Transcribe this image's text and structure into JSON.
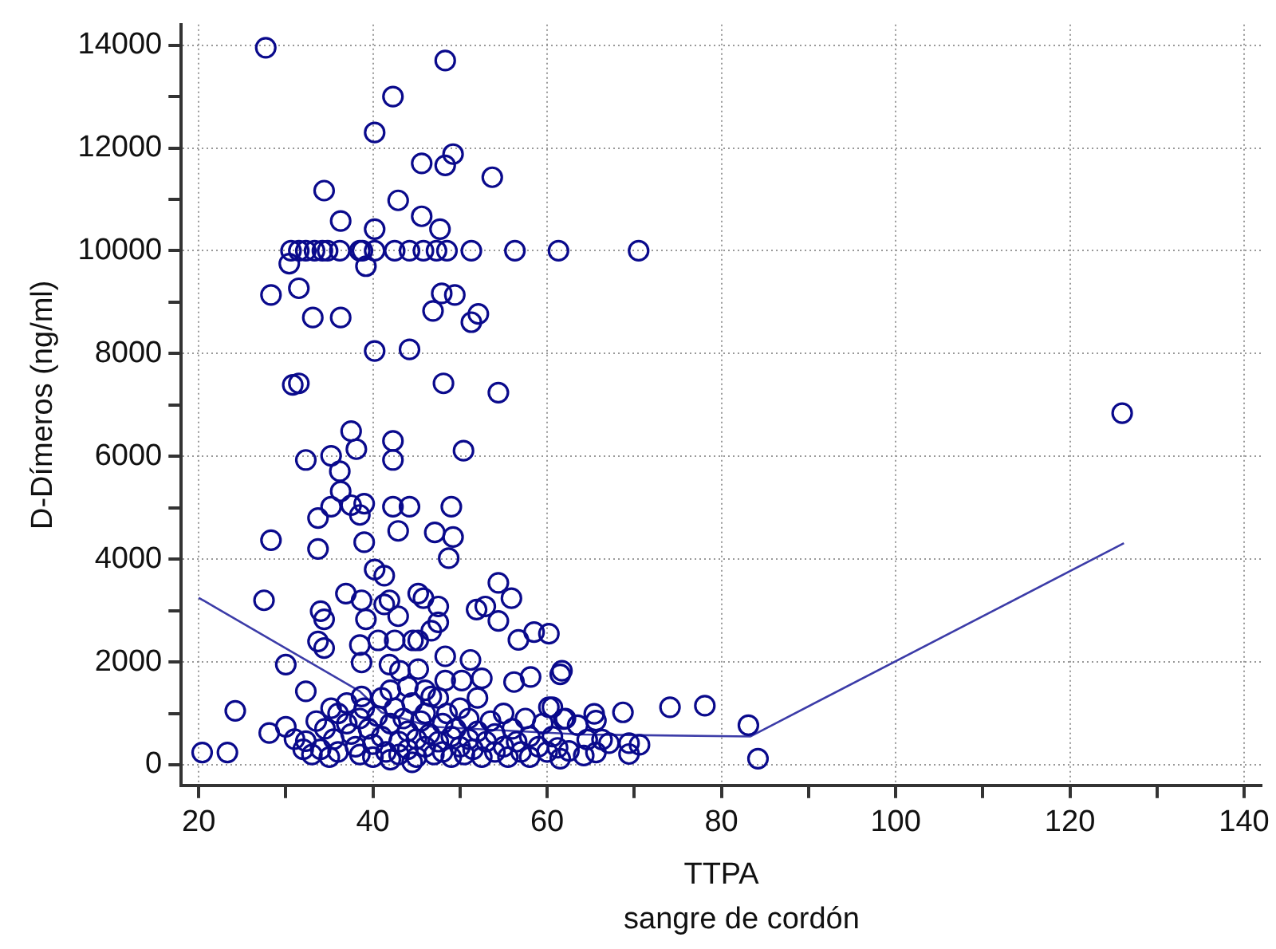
{
  "chart_data": {
    "type": "scatter",
    "xlabel": "TTPA",
    "ylabel": "D-Dímeros (ng/ml)",
    "annotations": [
      "sangre de cordón"
    ],
    "xlim": [
      18,
      142
    ],
    "ylim": [
      -400,
      14400
    ],
    "xticks": [
      20,
      {
        "value": 30,
        "label": null
      },
      40,
      {
        "value": 50,
        "label": null
      },
      60,
      {
        "value": 70,
        "label": null
      },
      80,
      {
        "value": 90,
        "label": null
      },
      100,
      {
        "value": 110,
        "label": null
      },
      120,
      {
        "value": 130,
        "label": null
      },
      140
    ],
    "yticks": [
      0,
      {
        "value": 1000,
        "label": null
      },
      2000,
      {
        "value": 3000,
        "label": null
      },
      4000,
      {
        "value": 5000,
        "label": null
      },
      6000,
      {
        "value": 7000,
        "label": null
      },
      8000,
      {
        "value": 9000,
        "label": null
      },
      10000,
      {
        "value": 11000,
        "label": null
      },
      12000,
      {
        "value": 13000,
        "label": null
      },
      14000
    ],
    "grid": true,
    "marker": "circle",
    "series": [
      {
        "color": "#0a0a8c",
        "x": [
          27.7,
          48.3,
          42.3,
          40.2,
          49.2,
          48.3,
          45.6,
          53.7,
          34.4,
          42.9,
          45.6,
          36.3,
          40.2,
          47.7,
          30.6,
          31.5,
          32.3,
          33.3,
          34.2,
          34.8,
          36.2,
          38.5,
          38.8,
          40.2,
          42.5,
          44.2,
          45.8,
          47.3,
          48.5,
          51.3,
          56.3,
          61.3,
          70.5,
          30.4,
          39.2,
          28.3,
          31.5,
          47.9,
          49.4,
          46.9,
          52.1,
          51.3,
          33.1,
          36.3,
          40.2,
          44.2,
          31.5,
          30.8,
          48.1,
          54.4,
          37.5,
          42.3,
          42.3,
          38.1,
          50.4,
          32.3,
          35.2,
          36.2,
          36.3,
          33.7,
          35.2,
          37.5,
          39.0,
          38.5,
          42.3,
          44.2,
          49.0,
          42.9,
          47.1,
          49.2,
          48.7,
          28.3,
          33.7,
          39.0,
          40.2,
          41.3,
          54.4,
          55.9,
          51.9,
          52.9,
          54.4,
          56.7,
          58.5,
          60.2,
          27.5,
          36.9,
          38.7,
          41.9,
          41.3,
          45.2,
          45.8,
          47.5,
          47.5,
          46.7,
          34.0,
          34.4,
          39.2,
          42.9,
          33.7,
          34.4,
          38.5,
          40.6,
          42.5,
          44.6,
          45.2,
          38.7,
          41.9,
          48.3,
          51.2,
          30.0,
          43.1,
          45.2,
          61.7,
          32.3,
          38.7,
          48.3,
          50.2,
          52.5,
          56.2,
          58.1,
          44.0,
          46.7,
          24.2,
          28.1,
          30.0,
          32.3,
          20.4,
          23.3,
          60.2,
          61.9,
          61.5,
          60.6,
          62.1,
          65.4,
          65.6,
          63.5,
          68.7,
          74.1,
          78.1,
          83.1,
          84.2,
          126.0,
          60.6,
          61.2,
          62.5,
          61.5,
          64.6,
          66.3,
          67.1,
          64.2,
          65.6,
          69.4,
          70.6,
          69.4,
          36,
          37,
          37.5,
          38,
          38.5,
          39,
          39.5,
          40,
          40,
          40.5,
          41,
          41,
          41.5,
          42,
          42,
          42.5,
          43,
          43,
          43.5,
          44,
          44,
          44.5,
          45,
          45,
          45.5,
          46,
          46,
          46.5,
          47,
          47.5,
          47.5,
          48,
          48,
          48.5,
          49,
          49,
          49.5,
          50,
          50,
          50.5,
          51,
          51,
          51.5,
          52,
          52,
          52.5,
          53,
          53.5,
          54,
          54,
          55,
          55,
          55.5,
          56,
          56.5,
          57,
          57.5,
          58,
          58,
          59,
          59.5,
          60,
          34,
          34.5,
          35,
          35.5,
          33,
          33.5,
          32,
          31,
          36,
          37,
          38.5,
          44.5,
          46,
          42,
          35.2
        ],
        "values": [
          13950,
          13700,
          13000,
          12300,
          11880,
          11660,
          11700,
          11430,
          11170,
          10980,
          10670,
          10580,
          10420,
          10420,
          10000,
          10000,
          10000,
          10000,
          10000,
          10000,
          10000,
          10000,
          10000,
          10000,
          10000,
          10000,
          10000,
          10000,
          10000,
          10000,
          10000,
          10000,
          10000,
          9750,
          9700,
          9140,
          9270,
          9170,
          9140,
          8830,
          8770,
          8610,
          8700,
          8700,
          8050,
          8080,
          7420,
          7390,
          7420,
          7240,
          6490,
          6300,
          5930,
          6140,
          6110,
          5930,
          6010,
          5710,
          5320,
          4800,
          5020,
          5050,
          5080,
          4860,
          5020,
          5020,
          5020,
          4550,
          4520,
          4430,
          4020,
          4370,
          4200,
          4330,
          3800,
          3680,
          3540,
          3240,
          3020,
          3080,
          2800,
          2430,
          2580,
          2550,
          3200,
          3330,
          3200,
          3200,
          3120,
          3330,
          3240,
          3080,
          2770,
          2610,
          2990,
          2830,
          2830,
          2890,
          2400,
          2270,
          2330,
          2420,
          2420,
          2420,
          2420,
          1990,
          1950,
          2110,
          2040,
          1950,
          1830,
          1860,
          1830,
          1430,
          1330,
          1640,
          1640,
          1680,
          1610,
          1710,
          1520,
          1330,
          1050,
          620,
          740,
          460,
          240,
          240,
          1120,
          890,
          1760,
          1120,
          900,
          990,
          860,
          770,
          1020,
          1120,
          1150,
          770,
          120,
          6840,
          550,
          330,
          270,
          120,
          490,
          490,
          420,
          180,
          240,
          420,
          390,
          210,
          1000,
          800,
          600,
          350,
          200,
          1100,
          700,
          400,
          150,
          950,
          1300,
          550,
          250,
          800,
          100,
          1100,
          450,
          200,
          900,
          650,
          300,
          1200,
          500,
          150,
          850,
          1000,
          350,
          600,
          200,
          1300,
          450,
          800,
          250,
          1000,
          550,
          150,
          700,
          350,
          1100,
          200,
          900,
          500,
          300,
          1300,
          650,
          150,
          450,
          850,
          250,
          600,
          1000,
          350,
          150,
          700,
          450,
          250,
          900,
          550,
          150,
          350,
          800,
          250,
          300,
          700,
          150,
          500,
          200,
          850,
          300,
          500,
          250,
          1200,
          900,
          50,
          1450,
          1450,
          1100
        ]
      },
      {
        "type": "line",
        "color": "#3c3ca8",
        "marker": "none",
        "x": [
          20,
          38.5,
          41,
          46.7,
          64,
          83.3,
          126.2
        ],
        "values": [
          3250,
          1430,
          1020,
          740,
          590,
          550,
          4310
        ]
      }
    ]
  }
}
